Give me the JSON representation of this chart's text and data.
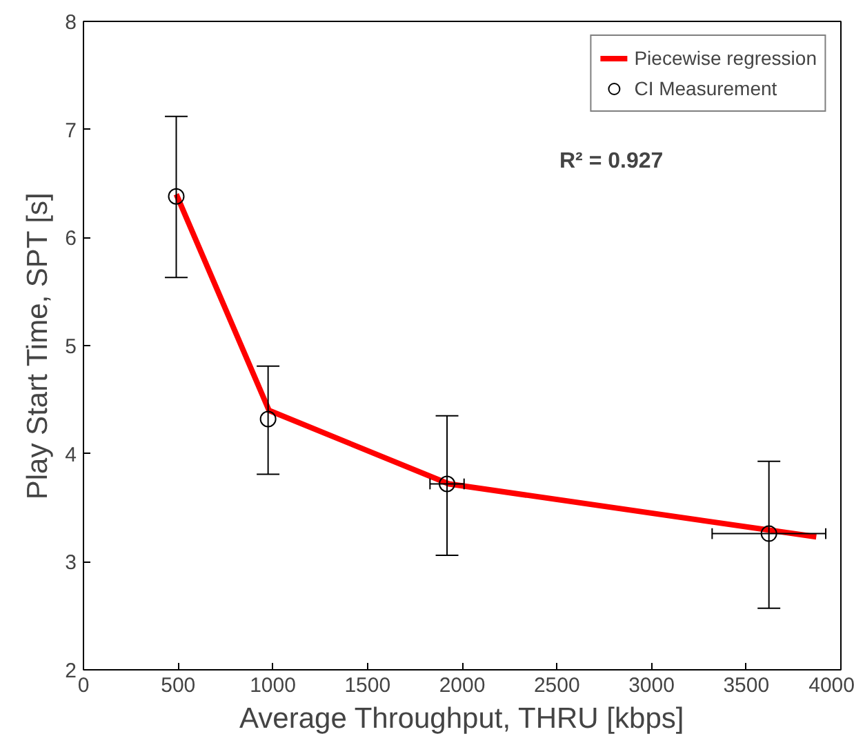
{
  "chart_data": {
    "type": "scatter",
    "xlabel": "Average Throughput, THRU [kbps]",
    "ylabel": "Play Start Time, SPT [s]",
    "xlim": [
      0,
      4000
    ],
    "xticks": [
      0,
      500,
      1000,
      1500,
      2000,
      2500,
      3000,
      3500,
      4000
    ],
    "ylim": [
      2,
      8
    ],
    "yticks": [
      2,
      3,
      4,
      5,
      6,
      7,
      8
    ],
    "grid": false,
    "legend": "top right",
    "annotations": [
      "R² = 0.927"
    ],
    "series": [
      {
        "name": "Piecewise regression",
        "type": "line",
        "color": "#ff0000",
        "x": [
          490,
          980,
          1930,
          3870
        ],
        "values": [
          6.4,
          4.4,
          3.72,
          3.23
        ],
        "line_style": "solid",
        "marker": "none"
      },
      {
        "name": "CI Measurement",
        "color": "#000000",
        "marker": "circle",
        "x": [
          490,
          975,
          1920,
          3620
        ],
        "values": [
          6.38,
          4.32,
          3.72,
          3.26
        ],
        "errors": [
          [
            5.63,
            7.12
          ],
          [
            3.81,
            4.81
          ],
          [
            3.06,
            4.35
          ],
          [
            2.57,
            3.93
          ]
        ],
        "xerrors": [
          null,
          null,
          [
            1830,
            2010
          ],
          [
            3320,
            3920
          ]
        ]
      }
    ]
  }
}
